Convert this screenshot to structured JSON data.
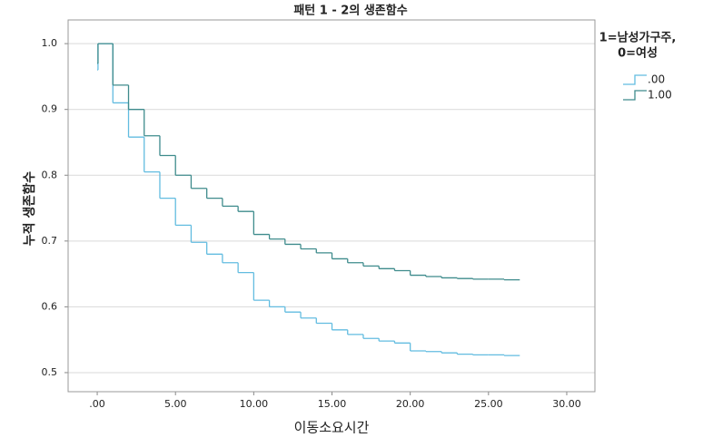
{
  "chart_data": {
    "type": "step",
    "title": "패턴 1 - 2의 생존함수",
    "x_label": "이동소요시간",
    "y_label": "누적 생존함수",
    "legend_title": [
      "1=남성가구주,",
      "0=여성"
    ],
    "x": [
      0,
      0.05,
      1,
      2,
      3,
      4,
      5,
      6,
      7,
      8,
      9,
      10,
      11,
      12,
      13,
      14,
      15,
      16,
      17,
      18,
      19,
      20,
      21,
      22,
      23,
      24,
      25,
      26,
      27
    ],
    "series": [
      {
        "name": ".00",
        "color": "#62bce0",
        "values": [
          0.96,
          1.0,
          0.91,
          0.858,
          0.805,
          0.765,
          0.724,
          0.698,
          0.68,
          0.667,
          0.652,
          0.61,
          0.6,
          0.592,
          0.583,
          0.575,
          0.565,
          0.558,
          0.552,
          0.548,
          0.545,
          0.533,
          0.532,
          0.53,
          0.528,
          0.527,
          0.527,
          0.526,
          0.526
        ]
      },
      {
        "name": "1.00",
        "color": "#3e8b8c",
        "values": [
          0.97,
          1.0,
          0.937,
          0.9,
          0.86,
          0.83,
          0.8,
          0.78,
          0.765,
          0.753,
          0.745,
          0.71,
          0.703,
          0.695,
          0.688,
          0.682,
          0.673,
          0.667,
          0.662,
          0.658,
          0.655,
          0.648,
          0.646,
          0.644,
          0.643,
          0.642,
          0.642,
          0.641,
          0.641
        ]
      }
    ],
    "xlim": [
      -1.86,
      31.8
    ],
    "xticks": [
      {
        "value": 0,
        "label": ".00"
      },
      {
        "value": 5,
        "label": "5.00"
      },
      {
        "value": 10,
        "label": "10.00"
      },
      {
        "value": 15,
        "label": "15.00"
      },
      {
        "value": 20,
        "label": "20.00"
      },
      {
        "value": 25,
        "label": "25.00"
      },
      {
        "value": 30,
        "label": "30.00"
      }
    ],
    "ylim": [
      0.471,
      1.036
    ],
    "yticks": [
      0.5,
      0.6,
      0.7,
      0.8,
      0.9,
      {
        "value": 1,
        "label": "1.0"
      }
    ],
    "grid": true
  }
}
